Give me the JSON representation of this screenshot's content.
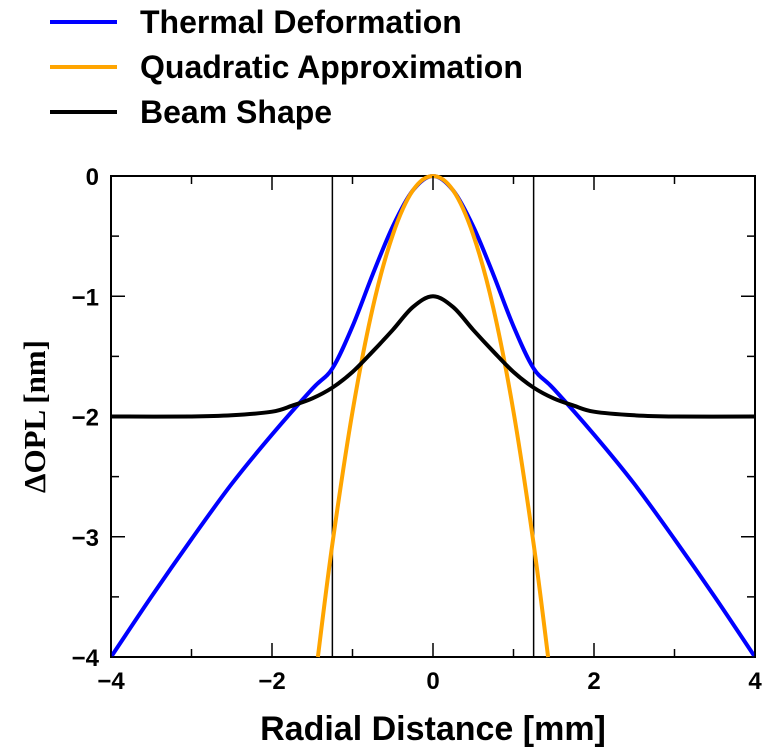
{
  "chart_data": {
    "type": "line",
    "xlabel": "Radial Distance [mm]",
    "ylabel": "ΔOPL [nm]",
    "xlim": [
      -4,
      4
    ],
    "ylim": [
      -4,
      0
    ],
    "x_ticks": [
      -4,
      -2,
      0,
      2,
      4
    ],
    "x_tick_labels": [
      "−4",
      "−2",
      "0",
      "2",
      "4"
    ],
    "y_ticks": [
      0,
      -1,
      -2,
      -3,
      -4
    ],
    "y_tick_labels": [
      "0",
      "−1",
      "−2",
      "−3",
      "−4"
    ],
    "grid": false,
    "legend_position": "top-left, above plot",
    "vertical_lines_x": [
      -1.25,
      1.25
    ],
    "series": [
      {
        "name": "Thermal Deformation",
        "color": "#0000ff",
        "x": [
          -4,
          -3.5,
          -3,
          -2.5,
          -2,
          -1.5,
          -1.25,
          -1,
          -0.75,
          -0.5,
          -0.25,
          0,
          0.25,
          0.5,
          0.75,
          1,
          1.25,
          1.5,
          2,
          2.5,
          3,
          3.5,
          4
        ],
        "y": [
          -4.0,
          -3.5,
          -3.02,
          -2.56,
          -2.15,
          -1.77,
          -1.6,
          -1.25,
          -0.82,
          -0.42,
          -0.12,
          0.0,
          -0.12,
          -0.42,
          -0.82,
          -1.25,
          -1.6,
          -1.77,
          -2.15,
          -2.56,
          -3.02,
          -3.5,
          -4.0
        ]
      },
      {
        "name": "Quadratic Approximation",
        "color": "#ffa500",
        "x": [
          -1.43,
          -1.25,
          -1,
          -0.75,
          -0.5,
          -0.25,
          0,
          0.25,
          0.5,
          0.75,
          1,
          1.25,
          1.43
        ],
        "y": [
          -4.0,
          -3.06,
          -1.96,
          -1.1,
          -0.49,
          -0.12,
          0.0,
          -0.12,
          -0.49,
          -1.1,
          -1.96,
          -3.06,
          -4.0
        ]
      },
      {
        "name": "Beam Shape",
        "color": "#000000",
        "x": [
          -4,
          -3,
          -2.5,
          -2,
          -1.75,
          -1.5,
          -1.25,
          -1,
          -0.75,
          -0.5,
          -0.25,
          0,
          0.25,
          0.5,
          0.75,
          1,
          1.25,
          1.5,
          1.75,
          2,
          2.5,
          3,
          4
        ],
        "y": [
          -2.0,
          -2.0,
          -1.99,
          -1.96,
          -1.91,
          -1.85,
          -1.76,
          -1.63,
          -1.46,
          -1.28,
          -1.09,
          -1.0,
          -1.09,
          -1.28,
          -1.46,
          -1.63,
          -1.76,
          -1.85,
          -1.91,
          -1.96,
          -1.99,
          -2.0,
          -2.0
        ]
      }
    ]
  }
}
